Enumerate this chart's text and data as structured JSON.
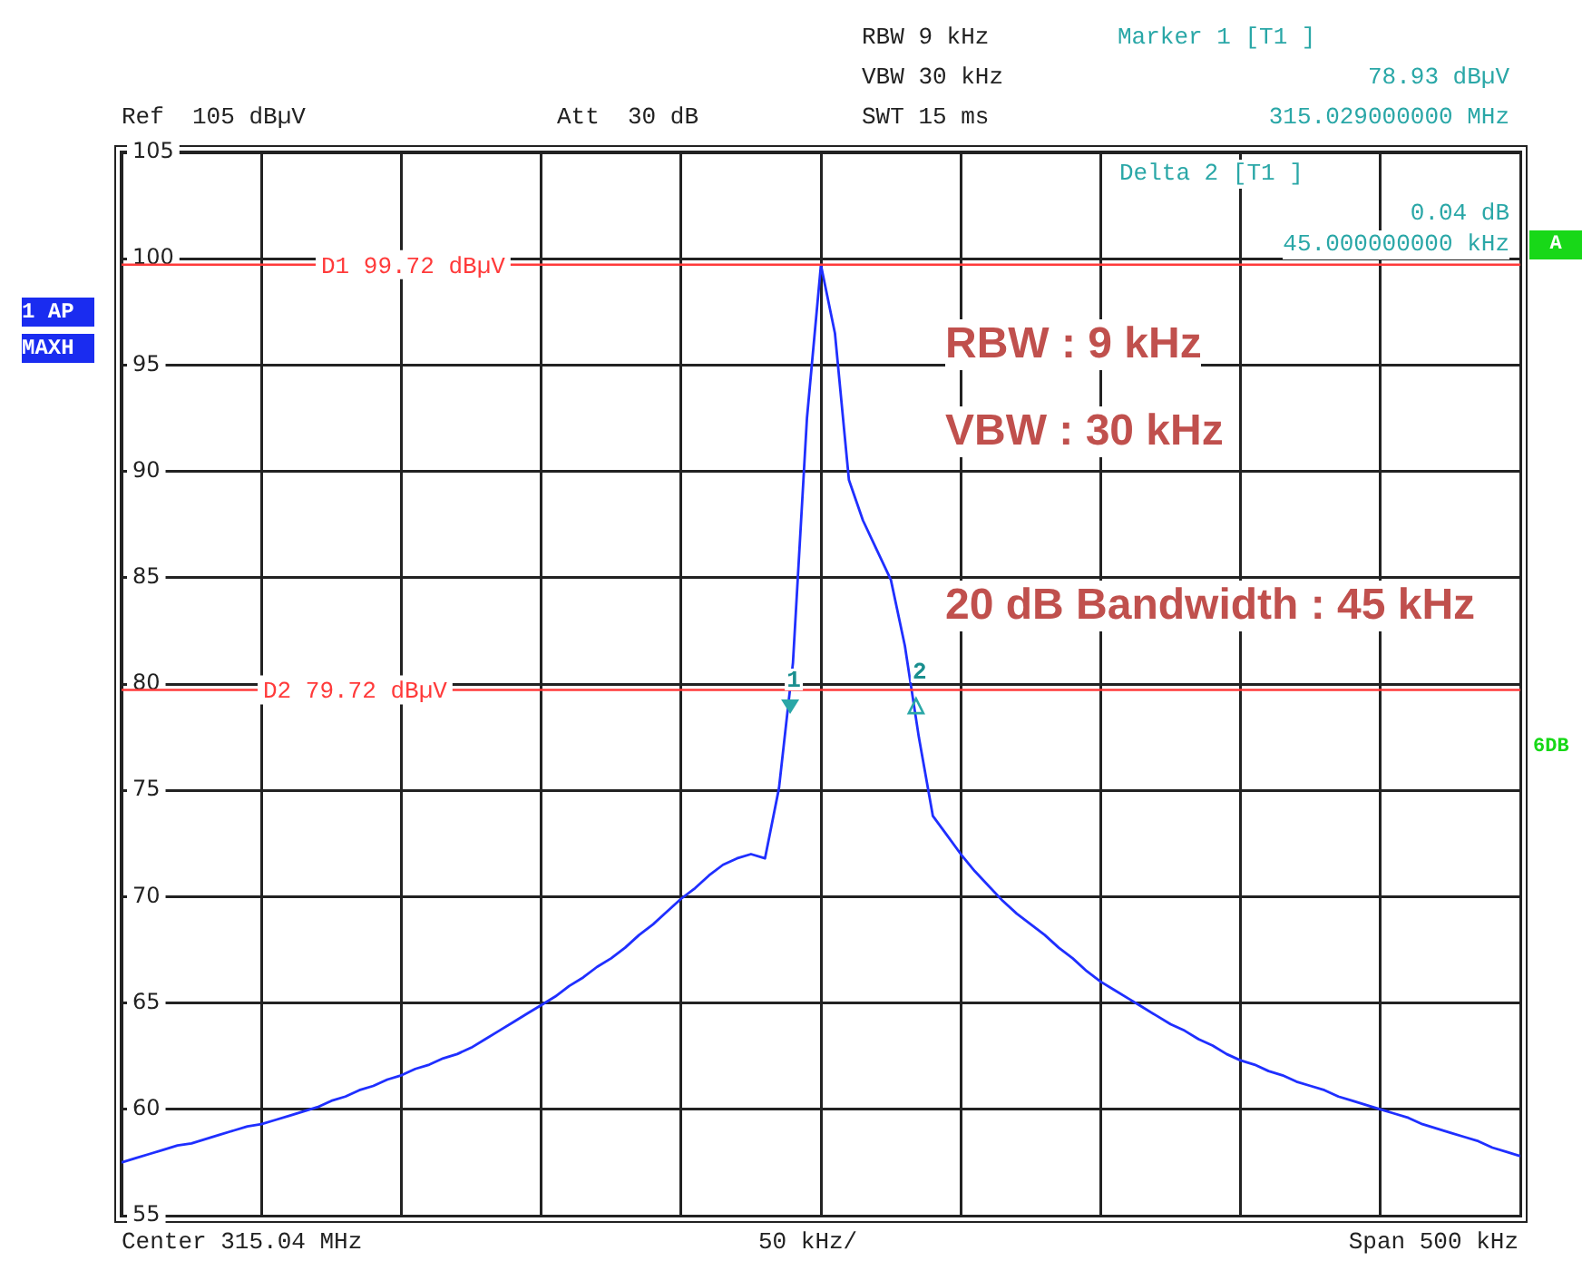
{
  "chart_data": {
    "type": "line",
    "categories": [
      null,
      null,
      null,
      null,
      null,
      null,
      null,
      null,
      null,
      null,
      null,
      null,
      null,
      null,
      null,
      null,
      null,
      null,
      null,
      null,
      null,
      null,
      null,
      null,
      null,
      null,
      null,
      null,
      null,
      null,
      null,
      null,
      null,
      null,
      null,
      null,
      null,
      null,
      null,
      null,
      null,
      null,
      null,
      null,
      null,
      null,
      null,
      null,
      null,
      null,
      null,
      null,
      null,
      null,
      null,
      null,
      null,
      null,
      null,
      null,
      null,
      null,
      null,
      null,
      null,
      null,
      null,
      null,
      null,
      null,
      null,
      null,
      null,
      null,
      null,
      null,
      null,
      null,
      null,
      null,
      null,
      null,
      null,
      null,
      null,
      null,
      null,
      null,
      null,
      null,
      null,
      null,
      null,
      null,
      null,
      null,
      null,
      null,
      null,
      null,
      null
    ],
    "series": [
      {
        "color": "#1f2fff",
        "values": [
          57.5,
          57.7,
          57.9,
          58.1,
          58.3,
          58.4,
          58.6,
          58.8,
          59.0,
          59.2,
          59.3,
          59.5,
          59.7,
          59.9,
          60.1,
          60.4,
          60.6,
          60.9,
          61.1,
          61.4,
          61.6,
          61.9,
          62.1,
          62.4,
          62.6,
          62.9,
          63.3,
          63.7,
          64.1,
          64.5,
          64.9,
          65.3,
          65.8,
          66.2,
          66.7,
          67.1,
          67.6,
          68.2,
          68.7,
          69.3,
          69.9,
          70.4,
          71.0,
          71.5,
          71.8,
          72.0,
          71.8,
          75.1,
          81.0,
          92.5,
          99.7,
          96.5,
          89.6,
          87.7,
          86.3,
          84.9,
          81.8,
          77.5,
          73.8,
          72.9,
          72.0,
          71.2,
          70.5,
          69.8,
          69.2,
          68.7,
          68.2,
          67.6,
          67.1,
          66.5,
          66.0,
          65.6,
          65.2,
          64.8,
          64.4,
          64.0,
          63.7,
          63.3,
          63.0,
          62.6,
          62.3,
          62.1,
          61.8,
          61.6,
          61.3,
          61.1,
          60.9,
          60.6,
          60.4,
          60.2,
          60.0,
          59.8,
          59.6,
          59.3,
          59.1,
          58.9,
          58.7,
          58.5,
          58.2,
          58.0,
          57.8
        ]
      }
    ],
    "ylim": [
      55,
      105
    ],
    "yticks": [
      55,
      60,
      65,
      70,
      75,
      80,
      85,
      90,
      95,
      100,
      105
    ],
    "tick_labels": "y",
    "grid": true,
    "marker": "none",
    "line_style": "solid",
    "ref_lines": [
      {
        "axis": "y",
        "value": 99.72,
        "label": "D1 99.72 dBµV",
        "color": "#ff3a3a"
      },
      {
        "axis": "y",
        "value": 79.72,
        "label": "D2 79.72 dBµV",
        "color": "#ff3a3a"
      }
    ],
    "annotations": [
      "Ref  105 dBµV",
      "Att  30 dB",
      "RBW 9 kHz",
      "VBW 30 kHz",
      "SWT 15 ms",
      "Marker 1 [T1 ]",
      "78.93 dBµV",
      "315.029000000 MHz",
      "Delta 2 [T1 ]",
      "0.04 dB",
      "45.000000000 kHz",
      "1 AP",
      "MAXH",
      "A",
      "6DB",
      "Center 315.04 MHz",
      "50 kHz/",
      "Span 500 kHz",
      "RBW : 9 kHz",
      "VBW : 30 kHz",
      "20 dB Bandwidth : 45 kHz",
      {
        "text": "1",
        "y": 78.93
      },
      {
        "text": "2",
        "y": 78.97
      }
    ]
  }
}
